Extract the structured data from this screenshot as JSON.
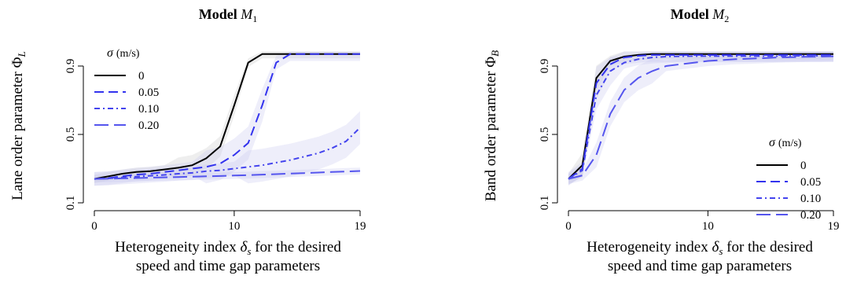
{
  "chart_data": [
    {
      "type": "line",
      "title": "Model M1",
      "title_bold": "Model",
      "title_var": "M",
      "title_sub": "1",
      "xlabel_line1": "Heterogeneity index δs for the desired",
      "xlabel_line2": "speed and time gap parameters",
      "xlabel_pre": "Heterogeneity index ",
      "xlabel_sym": "δ",
      "xlabel_sub": "s",
      "xlabel_post": " for the desired",
      "ylabel": "Lane order parameter ΦL",
      "ylabel_text": "Lane order parameter Φ",
      "ylabel_sub": "L",
      "xlim": [
        0,
        19
      ],
      "ylim": [
        0.1,
        0.95
      ],
      "x_ticks": [
        "0",
        "10",
        "19"
      ],
      "y_ticks": [
        "0.1",
        "0.5",
        "0.9"
      ],
      "legend": {
        "title": "σ (m/s)",
        "title_sym": "σ",
        "title_unit": "(m/s)",
        "placement": "top-left",
        "entries": [
          "0",
          "0.05",
          "0.10",
          "0.20"
        ]
      },
      "x": [
        0,
        1,
        2,
        3,
        4,
        5,
        6,
        7,
        8,
        9,
        10,
        11,
        12,
        13,
        14,
        15,
        16,
        17,
        18,
        19
      ],
      "series": [
        {
          "name": "0",
          "color": "#000000",
          "dash": "solid",
          "values": [
            0.24,
            0.255,
            0.27,
            0.28,
            0.285,
            0.295,
            0.305,
            0.32,
            0.36,
            0.43,
            0.67,
            0.92,
            0.97,
            0.97,
            0.97,
            0.97,
            0.97,
            0.97,
            0.97,
            0.97
          ]
        },
        {
          "name": "0.05",
          "color": "#3333ee",
          "dash": "dashed",
          "values": [
            0.24,
            0.245,
            0.255,
            0.265,
            0.27,
            0.28,
            0.29,
            0.3,
            0.31,
            0.33,
            0.38,
            0.45,
            0.67,
            0.92,
            0.97,
            0.97,
            0.97,
            0.97,
            0.97,
            0.97
          ]
        },
        {
          "name": "0.10",
          "color": "#4444ee",
          "dash": "dotdash",
          "values": [
            0.24,
            0.243,
            0.248,
            0.253,
            0.258,
            0.263,
            0.27,
            0.275,
            0.285,
            0.29,
            0.3,
            0.31,
            0.32,
            0.335,
            0.35,
            0.37,
            0.39,
            0.42,
            0.46,
            0.54
          ]
        },
        {
          "name": "0.20",
          "color": "#5555ee",
          "dash": "longdash",
          "values": [
            0.24,
            0.241,
            0.243,
            0.245,
            0.247,
            0.249,
            0.251,
            0.253,
            0.255,
            0.257,
            0.26,
            0.262,
            0.265,
            0.268,
            0.271,
            0.274,
            0.277,
            0.28,
            0.283,
            0.286
          ]
        }
      ]
    },
    {
      "type": "line",
      "title": "Model M2",
      "title_bold": "Model",
      "title_var": "M",
      "title_sub": "2",
      "xlabel_line1": "Heterogeneity index δs for the desired",
      "xlabel_line2": "speed and time gap parameters",
      "xlabel_pre": "Heterogeneity index ",
      "xlabel_sym": "δ",
      "xlabel_sub": "s",
      "xlabel_post": " for the desired",
      "ylabel": "Band order parameter ΦB",
      "ylabel_text": "Band order parameter Φ",
      "ylabel_sub": "B",
      "xlim": [
        0,
        19
      ],
      "ylim": [
        0.1,
        0.95
      ],
      "x_ticks": [
        "0",
        "10",
        "19"
      ],
      "y_ticks": [
        "0.1",
        "0.5",
        "0.9"
      ],
      "legend": {
        "title": "σ (m/s)",
        "title_sym": "σ",
        "title_unit": "(m/s)",
        "placement": "bottom-right",
        "entries": [
          "0",
          "0.05",
          "0.10",
          "0.20"
        ]
      },
      "x": [
        0,
        1,
        2,
        3,
        4,
        5,
        6,
        7,
        8,
        9,
        10,
        11,
        12,
        13,
        14,
        15,
        16,
        17,
        18,
        19
      ],
      "series": [
        {
          "name": "0",
          "color": "#000000",
          "dash": "solid",
          "values": [
            0.24,
            0.32,
            0.83,
            0.93,
            0.955,
            0.965,
            0.97,
            0.97,
            0.97,
            0.97,
            0.97,
            0.97,
            0.97,
            0.97,
            0.97,
            0.97,
            0.97,
            0.97,
            0.97,
            0.97
          ]
        },
        {
          "name": "0.05",
          "color": "#3333ee",
          "dash": "dashed",
          "values": [
            0.24,
            0.3,
            0.8,
            0.91,
            0.95,
            0.96,
            0.965,
            0.965,
            0.965,
            0.965,
            0.965,
            0.965,
            0.965,
            0.965,
            0.965,
            0.965,
            0.965,
            0.965,
            0.965,
            0.965
          ]
        },
        {
          "name": "0.10",
          "color": "#4444ee",
          "dash": "dotdash",
          "values": [
            0.24,
            0.29,
            0.73,
            0.87,
            0.92,
            0.94,
            0.95,
            0.955,
            0.957,
            0.958,
            0.958,
            0.958,
            0.958,
            0.958,
            0.958,
            0.958,
            0.96,
            0.96,
            0.96,
            0.96
          ]
        },
        {
          "name": "0.20",
          "color": "#5555ee",
          "dash": "longdash",
          "values": [
            0.24,
            0.26,
            0.38,
            0.62,
            0.76,
            0.83,
            0.87,
            0.9,
            0.91,
            0.92,
            0.93,
            0.935,
            0.94,
            0.943,
            0.946,
            0.95,
            0.952,
            0.954,
            0.955,
            0.957
          ]
        }
      ]
    }
  ]
}
